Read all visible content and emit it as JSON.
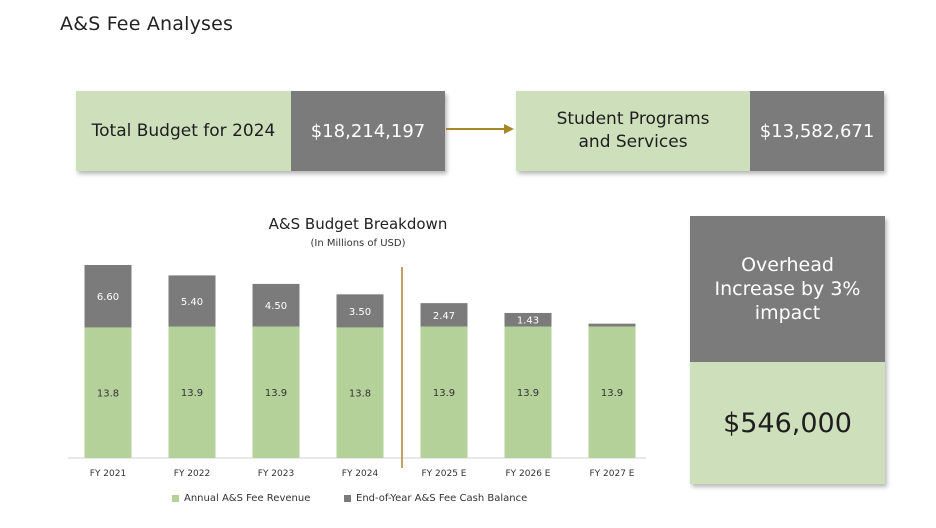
{
  "page": {
    "title": "A&S Fee Analyses"
  },
  "cards": {
    "total": {
      "label": "Total Budget for 2024",
      "value": "$18,214,197"
    },
    "programs": {
      "label": "Student Programs and Services",
      "value": "$13,582,671"
    }
  },
  "overhead": {
    "label": "Overhead Increase by 3% impact",
    "value": "$546,000"
  },
  "colors": {
    "green_light": "#cddfbb",
    "green_bar": "#b5d19a",
    "gray": "#7b7b7b",
    "gold_divider": "#a8892a"
  },
  "chart_data": {
    "type": "bar",
    "stacked": true,
    "title": "A&S Budget Breakdown",
    "subtitle": "(In Millions of USD)",
    "categories": [
      "FY 2021",
      "FY 2022",
      "FY 2023",
      "FY 2024",
      "FY 2025 E",
      "FY 2026 E",
      "FY 2027 E"
    ],
    "series": [
      {
        "name": "Annual A&S Fee Revenue",
        "values": [
          13.8,
          13.9,
          13.9,
          13.8,
          13.9,
          13.9,
          13.9
        ],
        "labels": [
          "13.8",
          "13.9",
          "13.9",
          "13.8",
          "13.9",
          "13.9",
          "13.9"
        ],
        "color": "#b5d19a"
      },
      {
        "name": "End-of-Year A&S Fee Cash Balance",
        "values": [
          6.6,
          5.4,
          4.5,
          3.5,
          2.47,
          1.43,
          0.3
        ],
        "labels": [
          "6.60",
          "5.40",
          "4.50",
          "3.50",
          "2.47",
          "1.43",
          ""
        ],
        "color": "#7b7b7b"
      }
    ],
    "ylim": [
      0,
      20.4
    ],
    "divider_after_category": "FY 2024",
    "legend_position": "bottom"
  }
}
